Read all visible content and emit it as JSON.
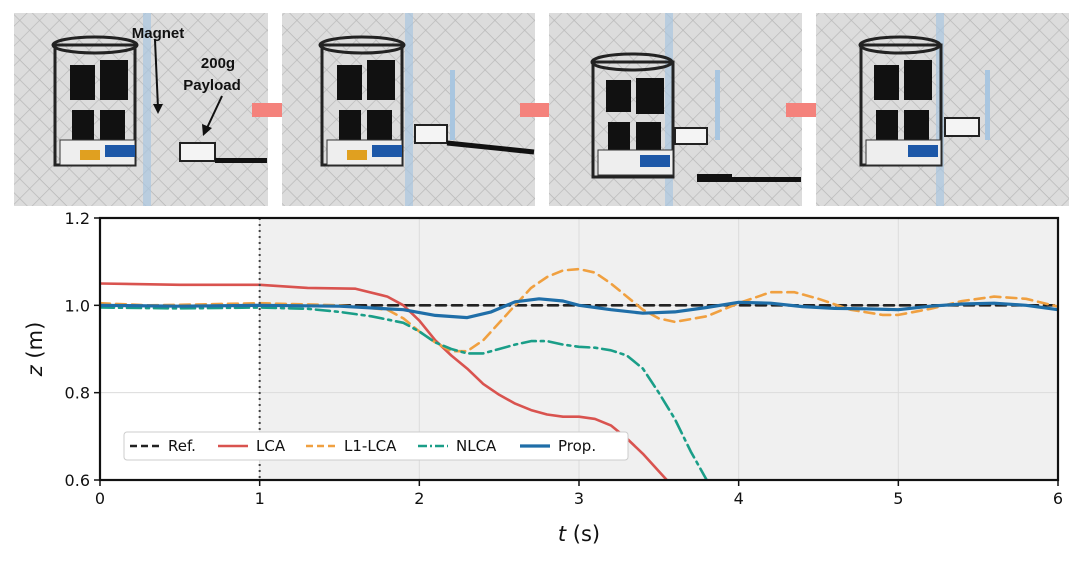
{
  "photos": {
    "annotations": {
      "magnet": "Magnet",
      "payload_line1": "200g",
      "payload_line2": "Payload"
    },
    "panels": 4,
    "arrow_color": "#f4827c"
  },
  "chart_data": {
    "type": "line",
    "title": "",
    "xlabel_var": "t",
    "xlabel_unit": " (s)",
    "ylabel_var": "z",
    "ylabel_unit": " (m)",
    "xlim": [
      0,
      6
    ],
    "ylim": [
      0.6,
      1.2
    ],
    "xticks": [
      0,
      1,
      2,
      3,
      4,
      5,
      6
    ],
    "yticks": [
      0.6,
      0.8,
      1.0,
      1.2
    ],
    "ytick_labels": [
      "0.6",
      "0.8",
      "1.0",
      "1.2"
    ],
    "grid": true,
    "event_time": 1,
    "legend_position": "lower-left",
    "series": [
      {
        "name": "Ref.",
        "color": "#222222",
        "style": "dashed",
        "x": [
          0,
          6
        ],
        "y": [
          1.0,
          1.0
        ]
      },
      {
        "name": "LCA",
        "color": "#d9534f",
        "style": "solid",
        "x": [
          0,
          0.5,
          1.0,
          1.3,
          1.6,
          1.8,
          1.9,
          2.0,
          2.1,
          2.2,
          2.3,
          2.4,
          2.5,
          2.6,
          2.7,
          2.8,
          2.9,
          3.0,
          3.1,
          3.2,
          3.3,
          3.4,
          3.5,
          3.55
        ],
        "y": [
          1.05,
          1.047,
          1.047,
          1.04,
          1.038,
          1.02,
          1.0,
          0.965,
          0.92,
          0.885,
          0.855,
          0.82,
          0.795,
          0.775,
          0.76,
          0.75,
          0.745,
          0.745,
          0.74,
          0.725,
          0.695,
          0.66,
          0.62,
          0.6
        ]
      },
      {
        "name": "L1-LCA",
        "color": "#f0a040",
        "style": "dashed",
        "x": [
          0,
          0.3,
          0.6,
          1.0,
          1.5,
          1.8,
          1.9,
          2.0,
          2.1,
          2.2,
          2.3,
          2.4,
          2.5,
          2.6,
          2.7,
          2.8,
          2.9,
          3.0,
          3.1,
          3.2,
          3.3,
          3.4,
          3.5,
          3.6,
          3.8,
          4.0,
          4.2,
          4.35,
          4.5,
          4.7,
          4.9,
          5.0,
          5.2,
          5.4,
          5.6,
          5.8,
          6.0
        ],
        "y": [
          1.005,
          1.0,
          1.002,
          1.005,
          1.0,
          0.99,
          0.97,
          0.94,
          0.915,
          0.895,
          0.895,
          0.92,
          0.96,
          1.0,
          1.04,
          1.065,
          1.08,
          1.083,
          1.075,
          1.05,
          1.02,
          0.99,
          0.97,
          0.962,
          0.975,
          1.005,
          1.03,
          1.03,
          1.015,
          0.99,
          0.978,
          0.978,
          0.992,
          1.01,
          1.02,
          1.015,
          0.997
        ]
      },
      {
        "name": "NLCA",
        "color": "#1a9e88",
        "style": "dashdot",
        "x": [
          0,
          0.5,
          1.0,
          1.3,
          1.5,
          1.7,
          1.9,
          2.0,
          2.1,
          2.2,
          2.3,
          2.4,
          2.5,
          2.6,
          2.7,
          2.8,
          2.9,
          3.0,
          3.1,
          3.2,
          3.3,
          3.4,
          3.5,
          3.6,
          3.7,
          3.8
        ],
        "y": [
          0.995,
          0.993,
          0.995,
          0.992,
          0.985,
          0.975,
          0.96,
          0.94,
          0.915,
          0.9,
          0.89,
          0.89,
          0.9,
          0.91,
          0.918,
          0.918,
          0.91,
          0.905,
          0.903,
          0.897,
          0.885,
          0.855,
          0.8,
          0.74,
          0.665,
          0.6
        ]
      },
      {
        "name": "Prop.",
        "color": "#1f6ea8",
        "style": "solid",
        "x": [
          0,
          0.5,
          1.0,
          1.5,
          1.9,
          2.1,
          2.3,
          2.45,
          2.6,
          2.75,
          2.9,
          3.0,
          3.2,
          3.4,
          3.6,
          3.8,
          4.0,
          4.2,
          4.4,
          4.6,
          4.8,
          5.0,
          5.2,
          5.4,
          5.6,
          5.8,
          6.0
        ],
        "y": [
          1.0,
          0.998,
          1.0,
          0.998,
          0.99,
          0.977,
          0.972,
          0.985,
          1.008,
          1.015,
          1.01,
          1.0,
          0.99,
          0.982,
          0.985,
          0.995,
          1.007,
          1.005,
          0.997,
          0.993,
          0.992,
          0.99,
          0.998,
          1.003,
          1.005,
          1.0,
          0.99
        ]
      }
    ]
  }
}
